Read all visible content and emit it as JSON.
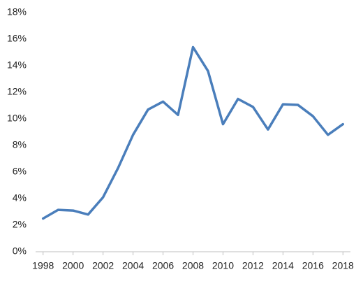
{
  "chart_data": {
    "type": "line",
    "x": [
      1998,
      1999,
      2000,
      2001,
      2002,
      2003,
      2004,
      2005,
      2006,
      2007,
      2008,
      2009,
      2010,
      2011,
      2012,
      2013,
      2014,
      2015,
      2016,
      2017,
      2018
    ],
    "values": [
      2.5,
      3.15,
      3.1,
      2.8,
      4.1,
      6.3,
      8.8,
      10.7,
      11.3,
      10.3,
      15.4,
      13.6,
      9.6,
      11.5,
      10.9,
      9.2,
      11.1,
      11.05,
      10.2,
      8.8,
      9.6
    ],
    "color": "#4a7ebb",
    "xlim": [
      1997.5,
      2018.5
    ],
    "xticks": [
      1998,
      2000,
      2002,
      2004,
      2006,
      2008,
      2010,
      2012,
      2014,
      2016,
      2018
    ],
    "ylim": [
      0,
      18
    ],
    "yticks": [
      {
        "value": 0,
        "label": "0%"
      },
      {
        "value": 2,
        "label": "2%"
      },
      {
        "value": 4,
        "label": "4%"
      },
      {
        "value": 6,
        "label": "6%"
      },
      {
        "value": 8,
        "label": "8%"
      },
      {
        "value": 10,
        "label": "10%"
      },
      {
        "value": 12,
        "label": "12%"
      },
      {
        "value": 14,
        "label": "14%"
      },
      {
        "value": 16,
        "label": "16%"
      },
      {
        "value": 18,
        "label": "18%"
      }
    ],
    "grid": false
  }
}
